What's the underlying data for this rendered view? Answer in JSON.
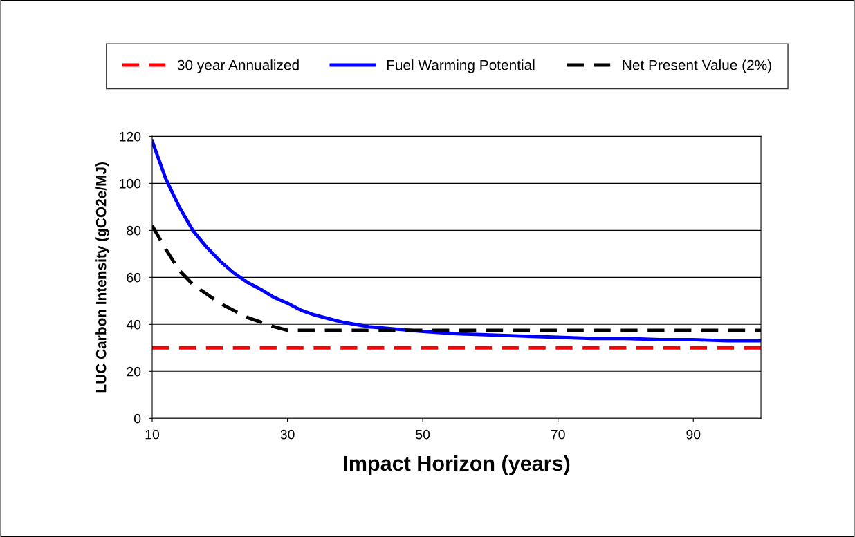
{
  "chart_data": {
    "type": "line",
    "xlabel": "Impact Horizon (years)",
    "ylabel": "LUC Carbon Intensity (gCO2e/MJ)",
    "xlim": [
      10,
      100
    ],
    "xticks": [
      10,
      30,
      50,
      70,
      90
    ],
    "ylim": [
      0,
      120
    ],
    "yticks": [
      0,
      20,
      40,
      60,
      80,
      100,
      120
    ],
    "grid": "y",
    "legend": "top",
    "marker": "none",
    "series": [
      {
        "name": "30 year Annualized",
        "color": "#ff0000",
        "line_style": "dashed",
        "x": [
          10,
          100
        ],
        "values": [
          30,
          30
        ]
      },
      {
        "name": "Fuel Warming Potential",
        "color": "#0000ff",
        "line_style": "solid",
        "x": [
          10,
          12,
          14,
          16,
          18,
          20,
          22,
          24,
          26,
          28,
          30,
          32,
          34,
          36,
          38,
          40,
          42,
          44,
          46,
          48,
          50,
          55,
          60,
          65,
          70,
          75,
          80,
          85,
          90,
          95,
          100
        ],
        "values": [
          118,
          102,
          90,
          80,
          73,
          67,
          62,
          58,
          55,
          51.5,
          49,
          46,
          44,
          42.5,
          41,
          40,
          39,
          38.5,
          38,
          37.5,
          37,
          36,
          35.5,
          35,
          34.5,
          34,
          34,
          33.5,
          33.5,
          33,
          33
        ]
      },
      {
        "name": "Net Present Value (2%)",
        "color": "#000000",
        "line_style": "dashed",
        "x": [
          10,
          12,
          14,
          16,
          18,
          20,
          22,
          24,
          26,
          28,
          30,
          100
        ],
        "values": [
          82,
          72,
          63,
          57,
          53,
          49,
          46,
          43,
          41,
          39,
          37.5,
          37.5
        ]
      }
    ]
  }
}
